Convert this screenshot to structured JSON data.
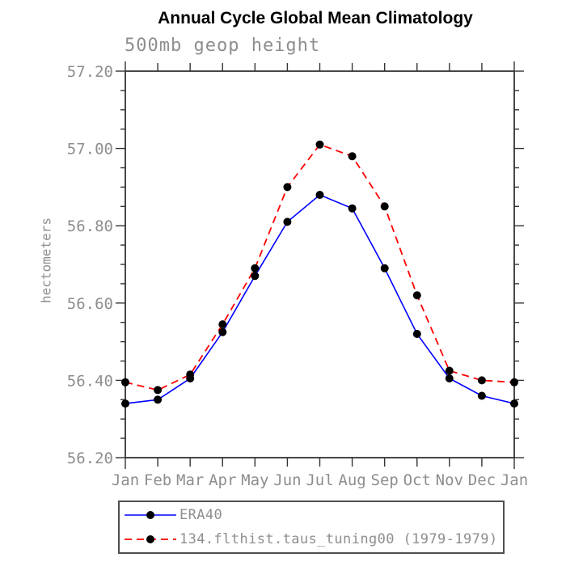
{
  "page": {
    "title": "Annual Cycle Global Mean Climatology",
    "subtitle": "500mb geop height"
  },
  "colors": {
    "background": "#ffffff",
    "axis": "#333333",
    "tick_label_text": "#8e8e8e",
    "title_text": "#000000",
    "era40_line": "#0000ff",
    "model_line": "#ff0000",
    "marker": "#000000",
    "legend_border": "#4f4f4f"
  },
  "chart_data": {
    "type": "line",
    "title": "Annual Cycle Global Mean Climatology",
    "subtitle": "500mb geop height",
    "xlabel": "",
    "ylabel": "hectometers",
    "categories": [
      "Jan",
      "Feb",
      "Mar",
      "Apr",
      "May",
      "Jun",
      "Jul",
      "Aug",
      "Sep",
      "Oct",
      "Nov",
      "Dec",
      "Jan"
    ],
    "ylim": [
      56.2,
      57.2
    ],
    "ytick_major_step": 0.2,
    "ytick_minor_step": 0.05,
    "ytick_labels": [
      "57.20",
      "57.00",
      "56.80",
      "56.60",
      "56.40",
      "56.20"
    ],
    "grid": false,
    "legend_position": "bottom-left",
    "series": [
      {
        "name": "ERA40",
        "color": "#0000ff",
        "line_style": "solid",
        "marker": "filled-circle",
        "marker_color": "#000000",
        "values": [
          56.34,
          56.35,
          56.405,
          56.525,
          56.67,
          56.81,
          56.88,
          56.845,
          56.69,
          56.52,
          56.405,
          56.36,
          56.34
        ]
      },
      {
        "name": "134.flthist.taus_tuning00 (1979-1979)",
        "color": "#ff0000",
        "line_style": "dashed",
        "marker": "filled-circle",
        "marker_color": "#000000",
        "values": [
          56.395,
          56.375,
          56.415,
          56.545,
          56.69,
          56.9,
          57.01,
          56.98,
          56.85,
          56.62,
          56.425,
          56.4,
          56.395
        ]
      }
    ]
  }
}
